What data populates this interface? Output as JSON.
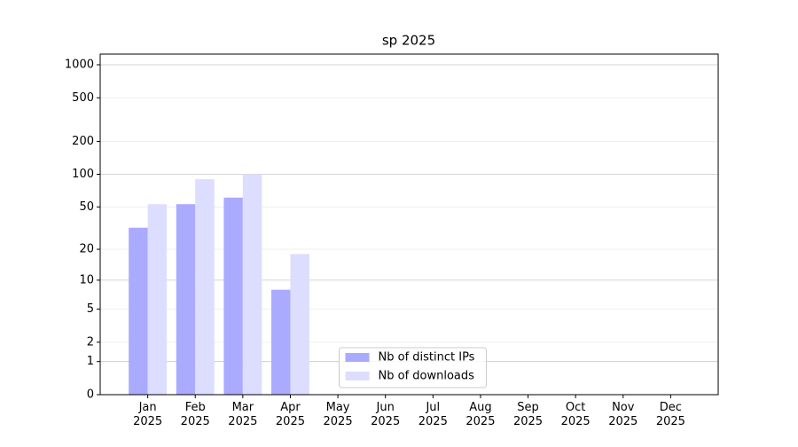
{
  "chart_data": {
    "type": "bar",
    "title": "sp 2025",
    "categories": [
      "Jan 2025",
      "Feb 2025",
      "Mar 2025",
      "Apr 2025",
      "May 2025",
      "Jun 2025",
      "Jul 2025",
      "Aug 2025",
      "Sep 2025",
      "Oct 2025",
      "Nov 2025",
      "Dec 2025"
    ],
    "series": [
      {
        "name": "Nb of distinct IPs",
        "color": "#aaaaff",
        "values": [
          32,
          53,
          61,
          8,
          null,
          null,
          null,
          null,
          null,
          null,
          null,
          null
        ]
      },
      {
        "name": "Nb of downloads",
        "color": "#ddddff",
        "values": [
          53,
          90,
          100,
          18,
          null,
          null,
          null,
          null,
          null,
          null,
          null,
          null
        ]
      }
    ],
    "yscale": "log1p",
    "ylim": [
      0,
      1250
    ],
    "yticks": [
      0,
      1,
      2,
      5,
      10,
      20,
      50,
      100,
      200,
      500,
      1000
    ],
    "grid": true,
    "legend": "lower center"
  }
}
